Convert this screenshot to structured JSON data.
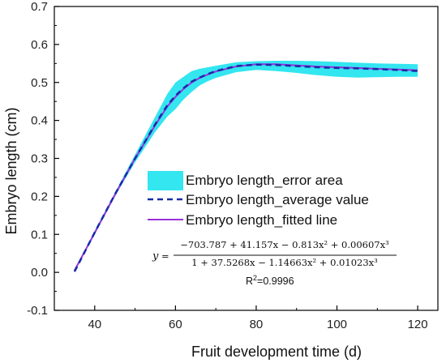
{
  "chart_data": {
    "type": "line",
    "xlabel": "Fruit development time (d)",
    "ylabel": "Embryo length (cm)",
    "xlim": [
      30,
      125
    ],
    "ylim": [
      -0.1,
      0.7
    ],
    "xticks": [
      40,
      60,
      80,
      100,
      120
    ],
    "xtick_labels": [
      "40",
      "60",
      "80",
      "100",
      "120"
    ],
    "yticks": [
      -0.1,
      0.0,
      0.1,
      0.2,
      0.3,
      0.4,
      0.5,
      0.6,
      0.7
    ],
    "ytick_labels": [
      "-0.1",
      "0.0",
      "0.1",
      "0.2",
      "0.3",
      "0.4",
      "0.5",
      "0.6",
      "0.7"
    ],
    "legend_position": "inside-lower-right",
    "series": [
      {
        "name": "Embryo length_error area",
        "kind": "band",
        "color": "#33e6f0",
        "x": [
          35,
          40,
          45,
          50,
          55,
          58,
          60,
          62,
          64,
          66,
          68,
          70,
          75,
          80,
          85,
          90,
          95,
          100,
          105,
          110,
          115,
          120
        ],
        "upper": [
          0.005,
          0.11,
          0.21,
          0.31,
          0.41,
          0.47,
          0.5,
          0.515,
          0.53,
          0.536,
          0.54,
          0.544,
          0.553,
          0.556,
          0.557,
          0.557,
          0.556,
          0.554,
          0.552,
          0.55,
          0.549,
          0.548
        ],
        "lower": [
          0.001,
          0.1,
          0.2,
          0.29,
          0.37,
          0.41,
          0.43,
          0.455,
          0.475,
          0.492,
          0.503,
          0.512,
          0.527,
          0.533,
          0.53,
          0.525,
          0.519,
          0.515,
          0.513,
          0.514,
          0.515,
          0.515
        ]
      },
      {
        "name": "Embryo length_average value",
        "kind": "dashed-line",
        "color": "#1a2aa8",
        "x": [
          35,
          40,
          45,
          50,
          55,
          58,
          60,
          62,
          64,
          66,
          68,
          70,
          75,
          80,
          85,
          90,
          95,
          100,
          105,
          110,
          115,
          120
        ],
        "y": [
          0.002,
          0.105,
          0.205,
          0.3,
          0.39,
          0.44,
          0.465,
          0.485,
          0.502,
          0.513,
          0.522,
          0.53,
          0.543,
          0.547,
          0.546,
          0.543,
          0.54,
          0.538,
          0.537,
          0.535,
          0.533,
          0.53
        ]
      },
      {
        "name": "Embryo length_fitted line",
        "kind": "line",
        "color": "#9b30d9",
        "x": [
          35,
          40,
          45,
          50,
          55,
          58,
          60,
          62,
          64,
          66,
          68,
          70,
          75,
          80,
          85,
          90,
          95,
          100,
          105,
          110,
          115,
          120
        ],
        "y": [
          0.005,
          0.104,
          0.204,
          0.3,
          0.388,
          0.437,
          0.462,
          0.483,
          0.5,
          0.512,
          0.521,
          0.529,
          0.542,
          0.548,
          0.548,
          0.545,
          0.542,
          0.54,
          0.538,
          0.536,
          0.534,
          0.532
        ]
      }
    ],
    "annotations": {
      "equation_y": "y",
      "equation_eq": "=",
      "equation_numerator": "−703.787 + 41.157x − 0.813x² + 0.00607x³",
      "equation_denominator": "1 + 37.5268x − 1.14663x² + 0.01023x³",
      "r2_base": "R",
      "r2_sup": "2",
      "r2_value": "=0.9996"
    }
  }
}
